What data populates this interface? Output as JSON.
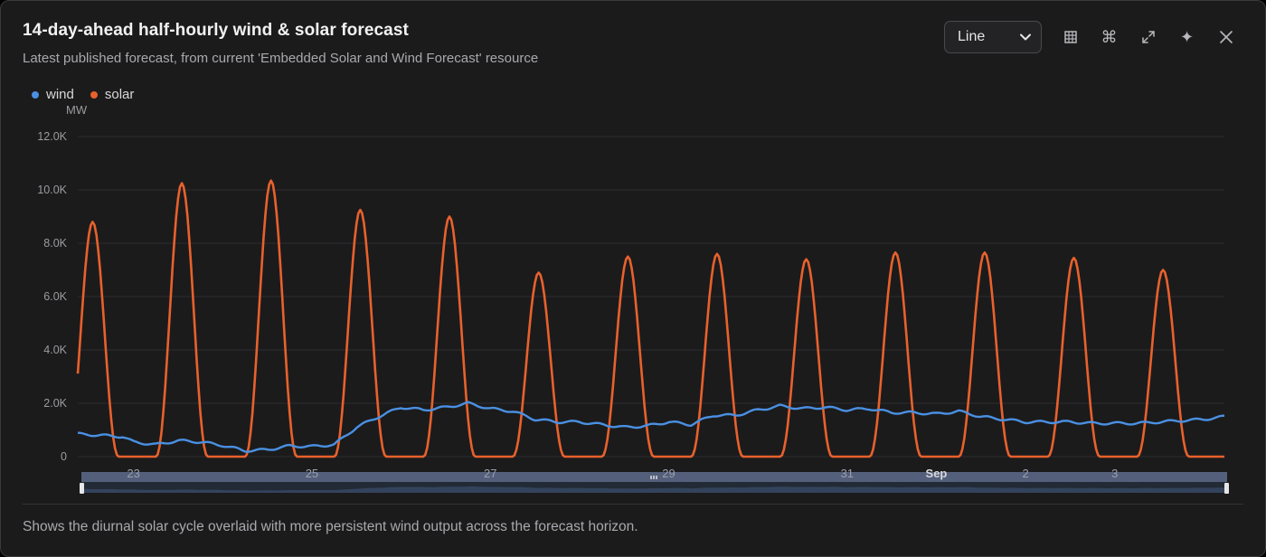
{
  "header": {
    "title": "14-day-ahead half-hourly wind & solar forecast",
    "subtitle": "Latest published forecast, from current 'Embedded Solar and Wind Forecast' resource"
  },
  "toolbar": {
    "chart_type_value": "Line",
    "icons": [
      "table-icon",
      "command-icon",
      "expand-icon",
      "sparkle-icon",
      "close-icon"
    ]
  },
  "footer": {
    "note": "Shows the diurnal solar cycle overlaid with more persistent wind output across the forecast horizon."
  },
  "colors": {
    "wind": "#4a90e2",
    "solar": "#e8612c",
    "grid": "#2c2c2f",
    "axis_text": "#9c9ca0"
  },
  "chart_data": {
    "type": "line",
    "y_unit": "MW",
    "ylim": [
      0,
      12000
    ],
    "y_ticks": [
      0,
      2000,
      4000,
      6000,
      8000,
      10000,
      12000
    ],
    "y_tick_labels": [
      "0",
      "2.0K",
      "4.0K",
      "6.0K",
      "8.0K",
      "10.0K",
      "12.0K"
    ],
    "x_range": [
      "2025-08-22T09:00",
      "2025-09-04T05:30"
    ],
    "x_tick_labels": [
      {
        "date": "2025-08-23T00:00",
        "label": "23"
      },
      {
        "date": "2025-08-25T00:00",
        "label": "25"
      },
      {
        "date": "2025-08-27T00:00",
        "label": "27"
      },
      {
        "date": "2025-08-29T00:00",
        "label": "29"
      },
      {
        "date": "2025-08-31T00:00",
        "label": "31"
      },
      {
        "date": "2025-09-01T00:00",
        "label": "Sep"
      },
      {
        "date": "2025-09-02T00:00",
        "label": "2"
      },
      {
        "date": "2025-09-03T00:00",
        "label": "3"
      }
    ],
    "legend": "top-left",
    "grid": true,
    "series": [
      {
        "name": "wind",
        "points": [
          [
            "2025-08-22T09:00",
            850
          ],
          [
            "2025-08-22T15:00",
            800
          ],
          [
            "2025-08-22T21:00",
            750
          ],
          [
            "2025-08-23T00:00",
            550
          ],
          [
            "2025-08-23T06:00",
            450
          ],
          [
            "2025-08-23T12:00",
            600
          ],
          [
            "2025-08-23T18:00",
            550
          ],
          [
            "2025-08-24T00:00",
            420
          ],
          [
            "2025-08-24T06:00",
            220
          ],
          [
            "2025-08-24T12:00",
            260
          ],
          [
            "2025-08-24T18:00",
            400
          ],
          [
            "2025-08-25T00:00",
            380
          ],
          [
            "2025-08-25T06:00",
            450
          ],
          [
            "2025-08-25T12:00",
            1100
          ],
          [
            "2025-08-25T18:00",
            1500
          ],
          [
            "2025-08-26T00:00",
            1850
          ],
          [
            "2025-08-26T06:00",
            1750
          ],
          [
            "2025-08-26T12:00",
            1850
          ],
          [
            "2025-08-26T18:00",
            2000
          ],
          [
            "2025-08-27T00:00",
            1800
          ],
          [
            "2025-08-27T06:00",
            1700
          ],
          [
            "2025-08-27T12:00",
            1400
          ],
          [
            "2025-08-27T18:00",
            1300
          ],
          [
            "2025-08-28T00:00",
            1300
          ],
          [
            "2025-08-28T06:00",
            1200
          ],
          [
            "2025-08-28T12:00",
            1100
          ],
          [
            "2025-08-28T18:00",
            1150
          ],
          [
            "2025-08-29T00:00",
            1300
          ],
          [
            "2025-08-29T06:00",
            1200
          ],
          [
            "2025-08-29T12:00",
            1550
          ],
          [
            "2025-08-29T18:00",
            1550
          ],
          [
            "2025-08-30T00:00",
            1750
          ],
          [
            "2025-08-30T06:00",
            1900
          ],
          [
            "2025-08-30T12:00",
            1800
          ],
          [
            "2025-08-30T18:00",
            1850
          ],
          [
            "2025-08-31T00:00",
            1750
          ],
          [
            "2025-08-31T06:00",
            1800
          ],
          [
            "2025-08-31T12:00",
            1650
          ],
          [
            "2025-08-31T18:00",
            1650
          ],
          [
            "2025-09-01T00:00",
            1600
          ],
          [
            "2025-09-01T06:00",
            1700
          ],
          [
            "2025-09-01T12:00",
            1500
          ],
          [
            "2025-09-01T18:00",
            1400
          ],
          [
            "2025-09-02T00:00",
            1300
          ],
          [
            "2025-09-02T06:00",
            1300
          ],
          [
            "2025-09-02T12:00",
            1300
          ],
          [
            "2025-09-02T18:00",
            1250
          ],
          [
            "2025-09-03T00:00",
            1250
          ],
          [
            "2025-09-03T06:00",
            1250
          ],
          [
            "2025-09-03T12:00",
            1300
          ],
          [
            "2025-09-03T18:00",
            1350
          ],
          [
            "2025-09-04T00:00",
            1400
          ],
          [
            "2025-09-04T05:30",
            1500
          ]
        ]
      },
      {
        "name": "solar",
        "peaks": [
          [
            "2025-08-22T13:00",
            8800
          ],
          [
            "2025-08-23T13:00",
            10250
          ],
          [
            "2025-08-24T13:00",
            10350
          ],
          [
            "2025-08-25T13:00",
            9250
          ],
          [
            "2025-08-26T13:00",
            9000
          ],
          [
            "2025-08-27T13:00",
            6900
          ],
          [
            "2025-08-28T13:00",
            7500
          ],
          [
            "2025-08-29T13:00",
            7600
          ],
          [
            "2025-08-30T13:00",
            7400
          ],
          [
            "2025-08-31T13:00",
            7650
          ],
          [
            "2025-09-01T13:00",
            7650
          ],
          [
            "2025-09-02T13:00",
            7450
          ],
          [
            "2025-09-03T13:00",
            7000
          ]
        ],
        "daylight_hours": [
          6,
          20
        ]
      }
    ]
  }
}
